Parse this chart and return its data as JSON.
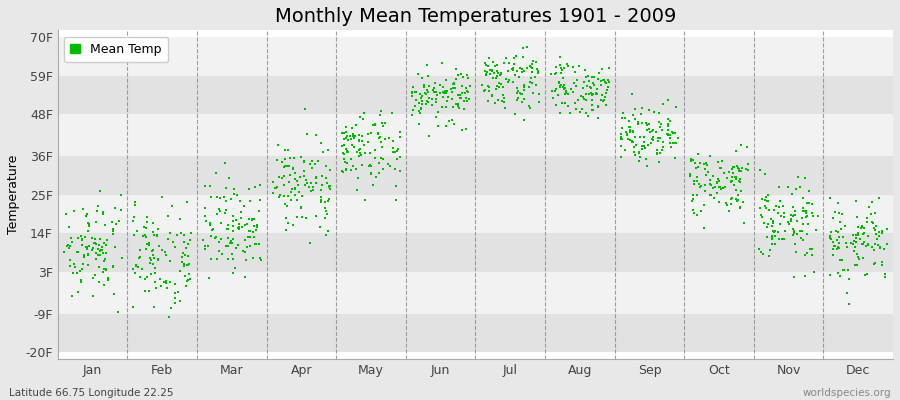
{
  "title": "Monthly Mean Temperatures 1901 - 2009",
  "ylabel": "Temperature",
  "xlabel_labels": [
    "Jan",
    "Feb",
    "Mar",
    "Apr",
    "May",
    "Jun",
    "Jul",
    "Aug",
    "Sep",
    "Oct",
    "Nov",
    "Dec"
  ],
  "ytick_labels": [
    "-20F",
    "-9F",
    "3F",
    "14F",
    "25F",
    "36F",
    "48F",
    "59F",
    "70F"
  ],
  "ytick_values": [
    -20,
    -9,
    3,
    14,
    25,
    36,
    48,
    59,
    70
  ],
  "ylim": [
    -22,
    72
  ],
  "dot_color": "#00bb00",
  "bg_color": "#e8e8e8",
  "band_light": "#f2f2f2",
  "band_dark": "#e2e2e2",
  "legend_label": "Mean Temp",
  "footer_left": "Latitude 66.75 Longitude 22.25",
  "footer_right": "worldspecies.org",
  "title_fontsize": 14,
  "axis_fontsize": 9,
  "footer_fontsize": 7.5,
  "n_years": 109,
  "monthly_means": [
    10,
    8,
    16,
    28,
    38,
    53,
    58,
    55,
    43,
    28,
    17,
    11
  ],
  "monthly_stds": [
    7,
    8,
    7,
    6,
    6,
    4,
    4,
    4,
    4,
    5,
    6,
    6
  ]
}
